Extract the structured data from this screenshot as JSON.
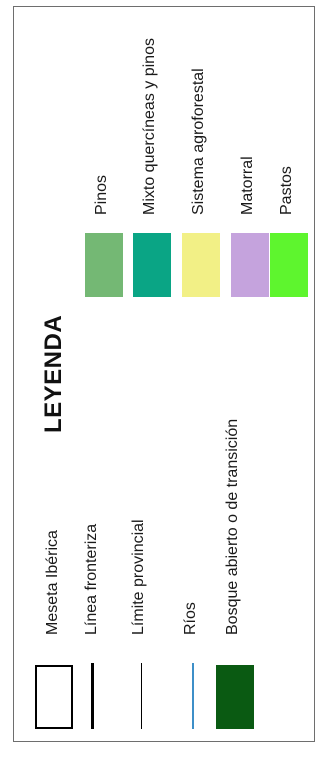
{
  "legend": {
    "title": "LEYENDA",
    "left_items": [
      {
        "label": "Meseta Ibérica",
        "symbol": "outline-box",
        "color": "#000000"
      },
      {
        "label": "Línea fronteriza",
        "symbol": "thick-line",
        "color": "#000000"
      },
      {
        "label": "Límite provincial",
        "symbol": "thin-line",
        "color": "#000000"
      },
      {
        "label": "Ríos",
        "symbol": "thin-line",
        "color": "#3d8fc8"
      },
      {
        "label": "Bosque abierto o de transición",
        "symbol": "fill",
        "color": "#0a5a12"
      }
    ],
    "right_items": [
      {
        "label": "Pinos",
        "color": "#74b874"
      },
      {
        "label": "Mixto quercíneas y pinos",
        "color": "#0aa585"
      },
      {
        "label": "Sistema agroforestal",
        "color": "#f2f086"
      },
      {
        "label": "Matorral",
        "color": "#c5a3dd"
      },
      {
        "label": "Pastos",
        "color": "#5ef52e"
      }
    ]
  }
}
